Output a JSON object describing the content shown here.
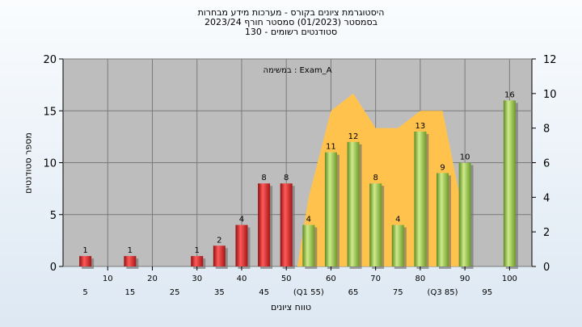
{
  "title_lines": [
    "היסטוגרמת ציונים בקורס - מערכות מידע מבחרות",
    "בסמסטר  (01/2023)  סמסטר חורף  2023/24",
    "סטודנטים רשומים - 130"
  ],
  "chart_data": {
    "type": "bar",
    "xlabel": "טווח ציונים",
    "ylabel": "מספר סטודנטים",
    "annotation": "במשימה : Exam_A",
    "ylim": [
      0,
      20
    ],
    "y_ticks": [
      0,
      5,
      10,
      15,
      20
    ],
    "y2lim": [
      0,
      12
    ],
    "y2_ticks": [
      0,
      2,
      4,
      6,
      8,
      10,
      12
    ],
    "grid": true,
    "x_ticks_upper": [
      "10",
      "20",
      "30",
      "40",
      "50",
      "60",
      "70",
      "80",
      "90",
      "100"
    ],
    "x_ticks_lower": [
      "5",
      "15",
      "25",
      "35",
      "45",
      "(Q1 55)",
      "65",
      "75",
      "(Q3 85)",
      "95"
    ],
    "bars": [
      {
        "x": 5,
        "value": 1,
        "label": "1",
        "color": "#d42020"
      },
      {
        "x": 15,
        "value": 1,
        "label": "1",
        "color": "#d42020"
      },
      {
        "x": 30,
        "value": 1,
        "label": "1",
        "color": "#d42020"
      },
      {
        "x": 35,
        "value": 2,
        "label": "2",
        "color": "#d42020"
      },
      {
        "x": 40,
        "value": 4,
        "label": "4",
        "color": "#d42020"
      },
      {
        "x": 45,
        "value": 8,
        "label": "8",
        "color": "#d42020"
      },
      {
        "x": 50,
        "value": 8,
        "label": "8",
        "color": "#d42020"
      },
      {
        "x": 55,
        "value": 4,
        "label": "4",
        "color": "#8cbf3a"
      },
      {
        "x": 60,
        "value": 11,
        "label": "11",
        "color": "#8cbf3a"
      },
      {
        "x": 65,
        "value": 12,
        "label": "12",
        "color": "#8cbf3a"
      },
      {
        "x": 70,
        "value": 8,
        "label": "8",
        "color": "#8cbf3a"
      },
      {
        "x": 75,
        "value": 4,
        "label": "4",
        "color": "#8cbf3a"
      },
      {
        "x": 80,
        "value": 13,
        "label": "13",
        "color": "#8cbf3a"
      },
      {
        "x": 85,
        "value": 9,
        "label": "9",
        "color": "#8cbf3a"
      },
      {
        "x": 90,
        "value": 10,
        "label": "10",
        "color": "#8cbf3a"
      },
      {
        "x": 100,
        "value": 16,
        "label": "16",
        "color": "#8cbf3a"
      }
    ],
    "area": {
      "color": "#ffc34d",
      "points": [
        [
          52.5,
          0
        ],
        [
          55,
          4
        ],
        [
          60,
          9
        ],
        [
          65,
          10
        ],
        [
          70,
          8
        ],
        [
          75,
          8
        ],
        [
          80,
          9
        ],
        [
          85,
          9
        ],
        [
          90,
          2.6
        ],
        [
          90,
          0
        ]
      ]
    },
    "plot_background": "#bdbdbd"
  }
}
